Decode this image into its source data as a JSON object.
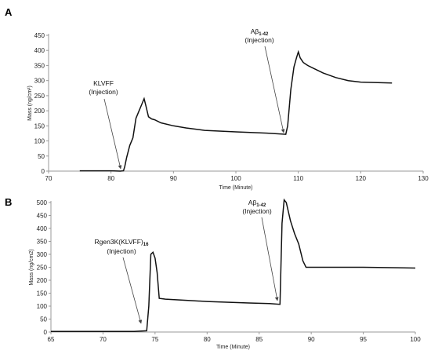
{
  "chart_data": [
    {
      "type": "line",
      "panel_label": "A",
      "xlabel": "Time (Minute)",
      "ylabel": "Mass (ng/cm²)",
      "xlim": [
        70,
        130
      ],
      "ylim": [
        0,
        450
      ],
      "xticks": [
        70,
        80,
        90,
        100,
        110,
        120,
        130
      ],
      "yticks": [
        0,
        50,
        100,
        150,
        200,
        250,
        300,
        350,
        400,
        450
      ],
      "series": [
        {
          "x": [
            75,
            78,
            80,
            81.5,
            82,
            82.2,
            82.5,
            83,
            83.5,
            84,
            84.5,
            85,
            85.3,
            85.6,
            86,
            86.5,
            87,
            88,
            90,
            92,
            95,
            100,
            105,
            108,
            108.3,
            108.8,
            109.3,
            109.7,
            110,
            110.3,
            110.8,
            111.5,
            112.5,
            114,
            116,
            118,
            120,
            125
          ],
          "y": [
            1,
            1,
            1,
            0,
            1,
            15,
            45,
            85,
            110,
            175,
            200,
            225,
            240,
            215,
            180,
            173,
            170,
            160,
            150,
            143,
            135,
            130,
            126,
            122,
            150,
            270,
            345,
            375,
            395,
            375,
            360,
            350,
            340,
            325,
            310,
            300,
            295,
            292
          ]
        }
      ],
      "annotations": [
        {
          "lines": [
            "KLVFF",
            "(Injection)"
          ],
          "x": 82,
          "y": 0
        },
        {
          "lines": [
            "Aβ1-42",
            "(Injection)"
          ],
          "x": 108,
          "y": 120
        }
      ]
    },
    {
      "type": "line",
      "panel_label": "B",
      "xlabel": "Time (Minute)",
      "ylabel": "Mass (ng/cm2)",
      "xlim": [
        65,
        100
      ],
      "ylim": [
        0,
        500
      ],
      "xticks": [
        65,
        70,
        75,
        80,
        85,
        90,
        95,
        100
      ],
      "yticks": [
        0,
        50,
        100,
        150,
        200,
        250,
        300,
        350,
        400,
        450,
        500
      ],
      "series": [
        {
          "x": [
            65,
            70,
            73,
            74.2,
            74.4,
            74.6,
            74.8,
            75.0,
            75.2,
            75.4,
            76,
            80,
            84,
            86,
            87.0,
            87.2,
            87.4,
            87.6,
            88.0,
            88.4,
            88.8,
            89.2,
            89.5,
            95,
            100
          ],
          "y": [
            2,
            2,
            2,
            5,
            100,
            300,
            308,
            285,
            230,
            130,
            127,
            118,
            112,
            110,
            107,
            420,
            510,
            500,
            430,
            380,
            340,
            275,
            250,
            250,
            247
          ]
        }
      ],
      "annotations": [
        {
          "lines": [
            "Rgen3K(KLVFF)16",
            "(Injection)"
          ],
          "x": 74.2,
          "y": 5
        },
        {
          "lines": [
            "Aβ1-42",
            "(Injection)"
          ],
          "x": 87,
          "y": 107
        }
      ]
    }
  ]
}
